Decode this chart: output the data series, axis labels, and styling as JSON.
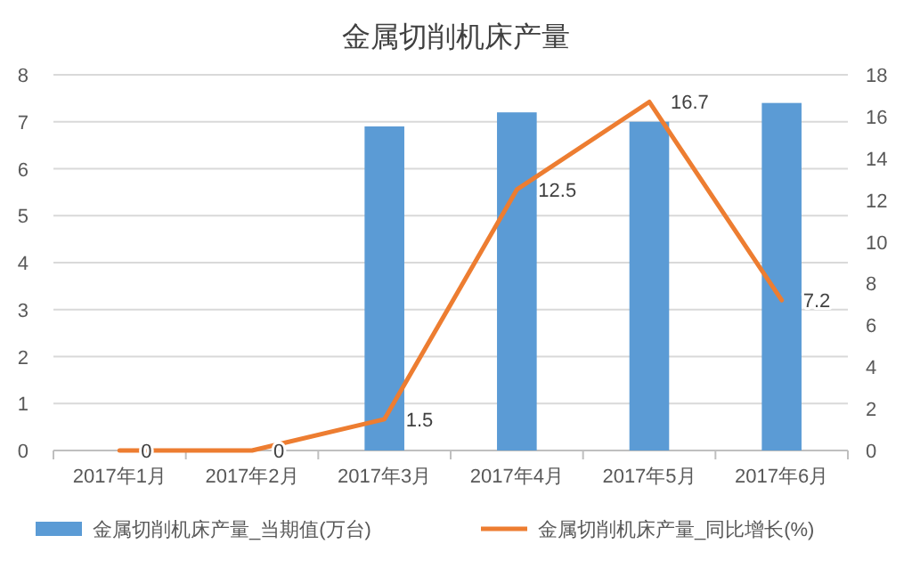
{
  "chart_data": {
    "type": "bar",
    "title": "金属切削机床产量",
    "categories": [
      "2017年1月",
      "2017年2月",
      "2017年3月",
      "2017年4月",
      "2017年5月",
      "2017年6月"
    ],
    "series": [
      {
        "name": "金属切削机床产量_当期值(万台)",
        "color": "#5b9bd5",
        "values": [
          null,
          null,
          6.9,
          7.2,
          7.0,
          7.4
        ]
      },
      {
        "name": "金属切削机床产量_同比增长(%)",
        "type": "line",
        "axis": "y2",
        "color": "#ed7d31",
        "values": [
          0,
          0,
          1.5,
          12.5,
          16.7,
          7.2
        ],
        "value_labels": [
          "0",
          "0",
          "1.5",
          "12.5",
          "16.7",
          "7.2"
        ]
      }
    ],
    "ylim": [
      0,
      8
    ],
    "yticks": [
      0,
      1,
      2,
      3,
      4,
      5,
      6,
      7,
      8
    ],
    "y2lim": [
      0,
      18
    ],
    "y2ticks": [
      0,
      2,
      4,
      6,
      8,
      10,
      12,
      14,
      16,
      18
    ],
    "grid": "y",
    "legend": "bottom",
    "marker": "none",
    "line_style": "solid"
  }
}
